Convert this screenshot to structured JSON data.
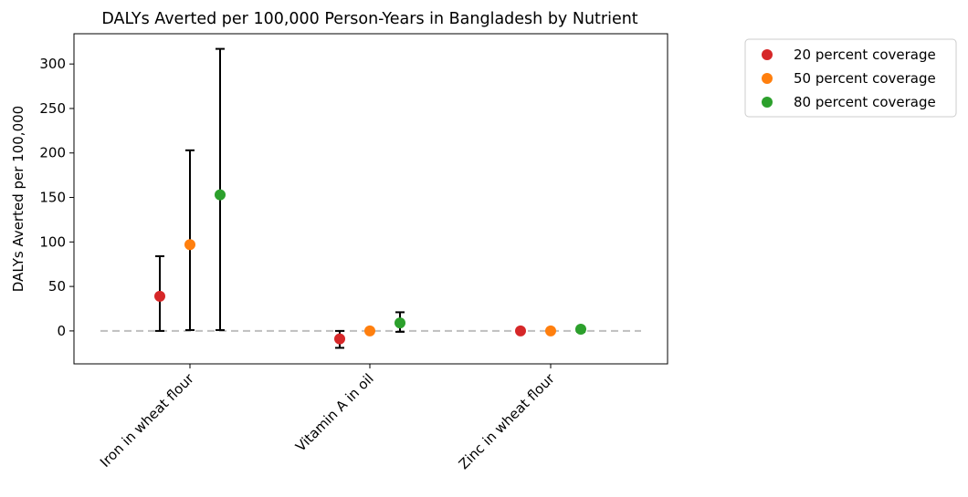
{
  "chart_data": {
    "type": "scatter",
    "title": "DALYs Averted per 100,000 Person-Years in Bangladesh by Nutrient",
    "xlabel": "",
    "ylabel": "DALYs Averted per 100,000",
    "categories": [
      "Iron in wheat flour",
      "Vitamin A in oil",
      "Zinc in wheat flour"
    ],
    "ylim": [
      -37,
      334
    ],
    "yticks": [
      0,
      50,
      100,
      150,
      200,
      250,
      300
    ],
    "grid": false,
    "legend_position": "outside upper right",
    "reference_line": {
      "y": 0,
      "style": "dashed",
      "color": "#bfbfbf"
    },
    "series": [
      {
        "name": "20 percent coverage",
        "color": "#d62728",
        "values": [
          39,
          -9,
          0
        ],
        "lower": [
          0,
          -19,
          -1
        ],
        "upper": [
          84,
          0,
          1
        ]
      },
      {
        "name": "50 percent coverage",
        "color": "#ff7f0e",
        "values": [
          97,
          0,
          0
        ],
        "lower": [
          1,
          -2,
          -2
        ],
        "upper": [
          203,
          2,
          2
        ]
      },
      {
        "name": "80 percent coverage",
        "color": "#2ca02c",
        "values": [
          153,
          9,
          2
        ],
        "lower": [
          1,
          -1,
          -1
        ],
        "upper": [
          317,
          21,
          4
        ]
      }
    ]
  }
}
